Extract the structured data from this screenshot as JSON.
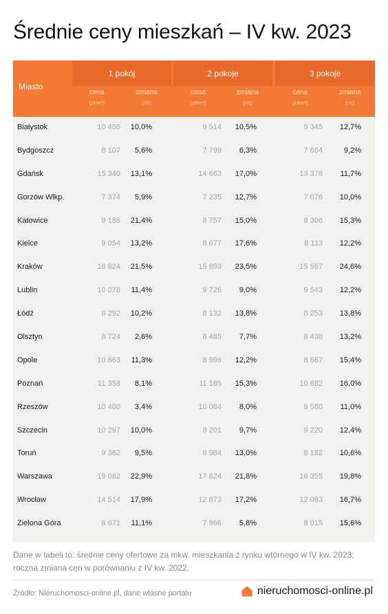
{
  "title": "Średnie ceny mieszkań – IV kw. 2023",
  "table": {
    "city_header": "Miasto",
    "groups": [
      {
        "label": "1 pokój",
        "price_label": "cena",
        "price_unit": "(zł/m²)",
        "change_label": "zmiana",
        "change_unit": "(r/r)"
      },
      {
        "label": "2 pokoje",
        "price_label": "cena",
        "price_unit": "(zł/m²)",
        "change_label": "zmiana",
        "change_unit": "(r/r)"
      },
      {
        "label": "3 pokoje",
        "price_label": "cena",
        "price_unit": "(zł/m²)",
        "change_label": "zmiana",
        "change_unit": "(r/r)"
      }
    ],
    "rows": [
      {
        "city": "Białystok",
        "p1": "10 486",
        "c1": "10,0%",
        "p2": "9 514",
        "c2": "10,5%",
        "p3": "9 345",
        "c3": "12,7%"
      },
      {
        "city": "Bydgoszcz",
        "p1": "8 107",
        "c1": "5,6%",
        "p2": "7 799",
        "c2": "6,3%",
        "p3": "7 664",
        "c3": "9,2%"
      },
      {
        "city": "Gdańsk",
        "p1": "15 340",
        "c1": "13,1%",
        "p2": "14 663",
        "c2": "17,0%",
        "p3": "13 376",
        "c3": "11,7%"
      },
      {
        "city": "Gorzów Wlkp.",
        "p1": "7 374",
        "c1": "5,9%",
        "p2": "7 235",
        "c2": "12,7%",
        "p3": "7 076",
        "c3": "10,0%"
      },
      {
        "city": "Katowice",
        "p1": "9 186",
        "c1": "21,4%",
        "p2": "8 757",
        "c2": "15,0%",
        "p3": "8 306",
        "c3": "15,3%"
      },
      {
        "city": "Kielce",
        "p1": "9 054",
        "c1": "13,2%",
        "p2": "8 677",
        "c2": "17,6%",
        "p3": "8 113",
        "c3": "12,2%"
      },
      {
        "city": "Kraków",
        "p1": "16 624",
        "c1": "21,5%",
        "p2": "15 893",
        "c2": "23,5%",
        "p3": "15 557",
        "c3": "24,6%"
      },
      {
        "city": "Lublin",
        "p1": "10 078",
        "c1": "11,4%",
        "p2": "9 726",
        "c2": "9,0%",
        "p3": "9 543",
        "c3": "12,2%"
      },
      {
        "city": "Łódź",
        "p1": "8 292",
        "c1": "10,2%",
        "p2": "8 132",
        "c2": "13,8%",
        "p3": "8 253",
        "c3": "13,8%"
      },
      {
        "city": "Olsztyn",
        "p1": "8 724",
        "c1": "2,6%",
        "p2": "8 485",
        "c2": "7,7%",
        "p3": "8 438",
        "c3": "13,2%"
      },
      {
        "city": "Opole",
        "p1": "10 663",
        "c1": "11,3%",
        "p2": "8 996",
        "c2": "12,2%",
        "p3": "8 667",
        "c3": "15,4%"
      },
      {
        "city": "Poznań",
        "p1": "11 358",
        "c1": "8,1%",
        "p2": "11 185",
        "c2": "15,3%",
        "p3": "10 682",
        "c3": "16,0%"
      },
      {
        "city": "Rzeszów",
        "p1": "10 400",
        "c1": "3,4%",
        "p2": "10 084",
        "c2": "8,0%",
        "p3": "9 580",
        "c3": "11,0%"
      },
      {
        "city": "Szczecin",
        "p1": "10 297",
        "c1": "10,0%",
        "p2": "9 201",
        "c2": "9,7%",
        "p3": "9 220",
        "c3": "12,4%"
      },
      {
        "city": "Toruń",
        "p1": "9 362",
        "c1": "9,5%",
        "p2": "8 984",
        "c2": "13,0%",
        "p3": "8 182",
        "c3": "10,6%"
      },
      {
        "city": "Warszawa",
        "p1": "19 062",
        "c1": "22,9%",
        "p2": "17 624",
        "c2": "21,8%",
        "p3": "16 355",
        "c3": "19,8%"
      },
      {
        "city": "Wrocław",
        "p1": "14 514",
        "c1": "17,9%",
        "p2": "12 873",
        "c2": "17,2%",
        "p3": "12 083",
        "c3": "16,7%"
      },
      {
        "city": "Zielona Góra",
        "p1": "8 671",
        "c1": "11,1%",
        "p2": "7 966",
        "c2": "5,8%",
        "p3": "8 015",
        "c3": "15,6%"
      }
    ]
  },
  "note": "Dane w tabeli to: średnie ceny ofertowe za mkw. mieszkania z rynku wtórnego w IV kw. 2023; roczna zmiana cen w porównaniu z IV kw. 2022.",
  "source": "Źródło: Nieruchomosci-online.pl, dane własne portalu",
  "brand": {
    "name": "nieruchomosci-online.pl",
    "icon": "house-icon",
    "accent": "#f47a33"
  },
  "colors": {
    "header": "#f47a33",
    "header_dark": "#e9692a",
    "body_bg": "#f2f1ee"
  }
}
